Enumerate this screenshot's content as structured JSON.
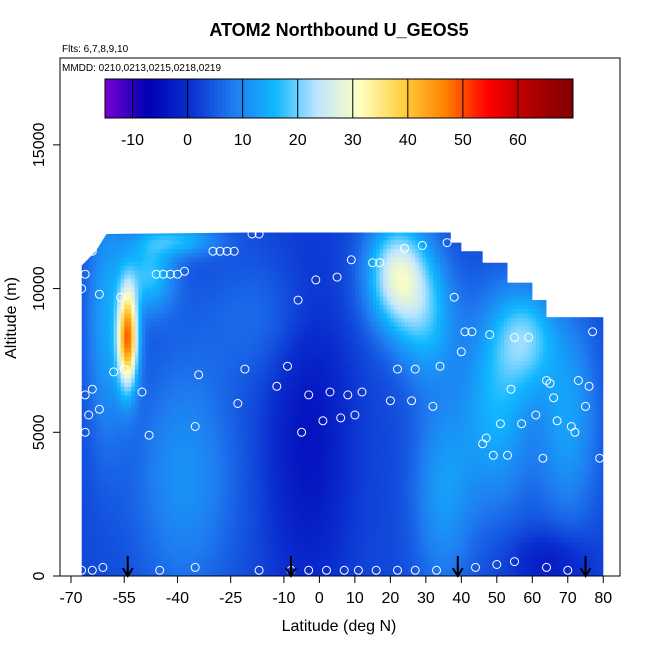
{
  "header": {
    "title": "ATOM2 Northbound U_GEOS5",
    "flights": "Flts: 6,7,8,9,10",
    "dates": "MMDD: 0210,0213,0215,0218,0219"
  },
  "chart_data": {
    "type": "heatmap",
    "title": "ATOM2 Northbound U_GEOS5",
    "xlabel": "Latitude (deg N)",
    "ylabel": "Altitude (m)",
    "xlim": [
      -70,
      85
    ],
    "ylim": [
      0,
      17500
    ],
    "xticks": [
      -70,
      -55,
      -40,
      -25,
      -10,
      0,
      10,
      20,
      30,
      40,
      50,
      60,
      70,
      80
    ],
    "xtick_labels": [
      "-70",
      "-55",
      "-40",
      "-25",
      "-10",
      "0",
      "10",
      "20",
      "30",
      "40",
      "50",
      "60",
      "70",
      "80"
    ],
    "yticks": [
      0,
      5000,
      10000,
      15000
    ],
    "ytick_labels": [
      "0",
      "5000",
      "10000",
      "15000"
    ],
    "colorbar": {
      "range": [
        -15,
        70
      ],
      "ticks": [
        -10,
        0,
        10,
        20,
        30,
        40,
        50,
        60
      ],
      "tick_labels": [
        "-10",
        "0",
        "10",
        "20",
        "30",
        "40",
        "50",
        "60"
      ],
      "colors": [
        "#7b00d4",
        "#0000b4",
        "#0a2ecf",
        "#1f7bf0",
        "#10b8ff",
        "#bfe6ff",
        "#ffffc0",
        "#ffd040",
        "#ff8000",
        "#ff0000",
        "#b00000",
        "#800000"
      ]
    },
    "flights_marked_lat": [
      -54,
      -8,
      39,
      75
    ],
    "upper_boundary": [
      [
        -67,
        10800
      ],
      [
        -63,
        11300
      ],
      [
        -60,
        11900
      ],
      [
        -20,
        11950
      ],
      [
        37,
        11950
      ],
      [
        37,
        11600
      ],
      [
        40,
        11600
      ],
      [
        40,
        11300
      ],
      [
        46,
        11300
      ],
      [
        46,
        10900
      ],
      [
        53,
        10900
      ],
      [
        53,
        10200
      ],
      [
        60,
        10200
      ],
      [
        60,
        9600
      ],
      [
        64,
        9600
      ],
      [
        64,
        9000
      ],
      [
        80,
        9000
      ],
      [
        80,
        0
      ],
      [
        -67,
        0
      ]
    ],
    "samples": [
      [
        -67,
        10000
      ],
      [
        -66,
        6300
      ],
      [
        -65,
        5600
      ],
      [
        -64,
        6500
      ],
      [
        -62,
        5800
      ],
      [
        -66,
        5000
      ],
      [
        -66,
        10500
      ],
      [
        -64,
        11300
      ],
      [
        -62,
        9800
      ],
      [
        -56,
        9700
      ],
      [
        -58,
        7100
      ],
      [
        -55,
        7200
      ],
      [
        -50,
        6400
      ],
      [
        -48,
        4900
      ],
      [
        -46,
        10500
      ],
      [
        -44,
        10500
      ],
      [
        -42,
        10500
      ],
      [
        -40,
        10500
      ],
      [
        -38,
        10600
      ],
      [
        -35,
        5200
      ],
      [
        -34,
        7000
      ],
      [
        -30,
        11300
      ],
      [
        -28,
        11300
      ],
      [
        -26,
        11300
      ],
      [
        -24,
        11300
      ],
      [
        -23,
        6000
      ],
      [
        -21,
        7200
      ],
      [
        -19,
        11900
      ],
      [
        -17,
        11900
      ],
      [
        -12,
        6600
      ],
      [
        -9,
        7300
      ],
      [
        -6,
        9600
      ],
      [
        -5,
        5000
      ],
      [
        -3,
        6300
      ],
      [
        -1,
        10300
      ],
      [
        1,
        5400
      ],
      [
        3,
        6400
      ],
      [
        5,
        10400
      ],
      [
        6,
        5500
      ],
      [
        8,
        6300
      ],
      [
        9,
        11000
      ],
      [
        10,
        5600
      ],
      [
        12,
        6400
      ],
      [
        15,
        10900
      ],
      [
        17,
        10900
      ],
      [
        20,
        6100
      ],
      [
        22,
        7200
      ],
      [
        24,
        11400
      ],
      [
        26,
        6100
      ],
      [
        27,
        7200
      ],
      [
        29,
        11500
      ],
      [
        32,
        5900
      ],
      [
        34,
        7300
      ],
      [
        36,
        11600
      ],
      [
        38,
        9700
      ],
      [
        40,
        7800
      ],
      [
        41,
        8500
      ],
      [
        43,
        8500
      ],
      [
        46,
        4600
      ],
      [
        47,
        4800
      ],
      [
        48,
        8400
      ],
      [
        49,
        4200
      ],
      [
        51,
        5300
      ],
      [
        53,
        4200
      ],
      [
        54,
        6500
      ],
      [
        55,
        8300
      ],
      [
        57,
        5300
      ],
      [
        59,
        8300
      ],
      [
        61,
        5600
      ],
      [
        63,
        4100
      ],
      [
        64,
        6800
      ],
      [
        65,
        6700
      ],
      [
        66,
        6200
      ],
      [
        67,
        5400
      ],
      [
        70,
        9400
      ],
      [
        71,
        5200
      ],
      [
        72,
        5000
      ],
      [
        73,
        6800
      ],
      [
        75,
        5900
      ],
      [
        76,
        6600
      ],
      [
        77,
        8500
      ],
      [
        79,
        4100
      ],
      [
        -67,
        200
      ],
      [
        -64,
        200
      ],
      [
        -61,
        300
      ],
      [
        -45,
        200
      ],
      [
        -35,
        300
      ],
      [
        -17,
        200
      ],
      [
        -8,
        200
      ],
      [
        -3,
        200
      ],
      [
        2,
        200
      ],
      [
        7,
        200
      ],
      [
        11,
        200
      ],
      [
        16,
        200
      ],
      [
        22,
        200
      ],
      [
        27,
        200
      ],
      [
        33,
        200
      ],
      [
        44,
        300
      ],
      [
        50,
        400
      ],
      [
        55,
        500
      ],
      [
        64,
        300
      ],
      [
        70,
        200
      ]
    ]
  }
}
